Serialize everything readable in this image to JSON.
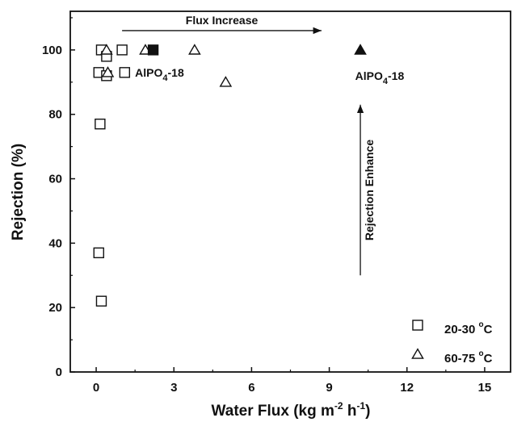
{
  "chart_data": {
    "type": "scatter",
    "xlabel": "Water Flux (kg m",
    "xlabel_sup1": "-2",
    "xlabel_mid": " h",
    "xlabel_sup2": "-1",
    "xlabel_end": ")",
    "ylabel": "Rejection (%)",
    "xlim": [
      -1,
      16
    ],
    "ylim": [
      0,
      112
    ],
    "xticks": [
      0,
      3,
      6,
      9,
      12,
      15
    ],
    "yticks": [
      0,
      20,
      40,
      60,
      80,
      100
    ],
    "series": [
      {
        "name": "20-30 °C",
        "name_parts": [
          "20-30 ",
          "o",
          "C"
        ],
        "marker": "open-square",
        "points": [
          {
            "x": 0.1,
            "y": 93
          },
          {
            "x": 0.2,
            "y": 100
          },
          {
            "x": 0.15,
            "y": 77
          },
          {
            "x": 0.1,
            "y": 37
          },
          {
            "x": 0.2,
            "y": 22
          },
          {
            "x": 0.4,
            "y": 98
          },
          {
            "x": 0.4,
            "y": 92
          },
          {
            "x": 1.0,
            "y": 100
          },
          {
            "x": 1.1,
            "y": 93
          }
        ]
      },
      {
        "name": "60-75 °C",
        "name_parts": [
          "60-75 ",
          "o",
          "C"
        ],
        "marker": "open-triangle",
        "points": [
          {
            "x": 0.4,
            "y": 100
          },
          {
            "x": 0.45,
            "y": 93
          },
          {
            "x": 1.9,
            "y": 100
          },
          {
            "x": 3.8,
            "y": 100
          },
          {
            "x": 5.0,
            "y": 90
          }
        ]
      },
      {
        "name": "AlPO4-18",
        "marker": "filled-square",
        "points": [
          {
            "x": 2.2,
            "y": 100
          }
        ]
      },
      {
        "name": "AlPO4-18",
        "marker": "filled-triangle",
        "points": [
          {
            "x": 10.2,
            "y": 100
          }
        ]
      }
    ],
    "annotations": [
      {
        "text": "AlPO",
        "sub": "4",
        "suffix": "-18",
        "at": {
          "x": 1.5,
          "y": 93
        }
      },
      {
        "text": "AlPO",
        "sub": "4",
        "suffix": "-18",
        "at": {
          "x": 10.0,
          "y": 92
        }
      },
      {
        "text": "Flux Increase",
        "arrow_from": {
          "x": 1.0,
          "y": 106
        },
        "arrow_to": {
          "x": 8.7,
          "y": 106
        }
      },
      {
        "text": "Rejection Enhance",
        "arrow_from": {
          "x": 10.2,
          "y": 30
        },
        "arrow_to": {
          "x": 10.2,
          "y": 83
        }
      }
    ],
    "legend_position": "bottom-right",
    "grid": false
  }
}
